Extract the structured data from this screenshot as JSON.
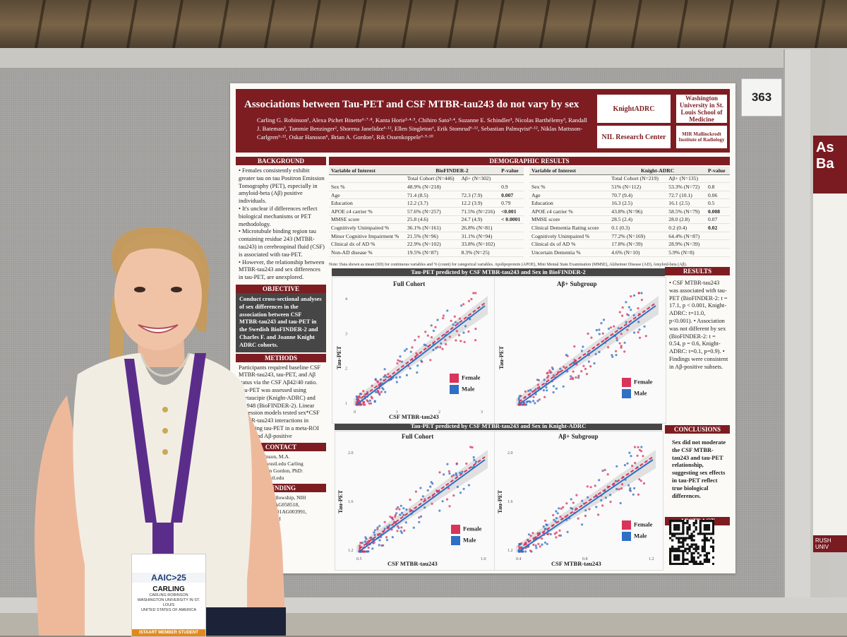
{
  "booth_number": "363",
  "poster": {
    "title": "Associations between Tau-PET and CSF MTBR-tau243 do not vary by sex",
    "authors": "Carling G. Robinson¹, Alexa Pichet Binette⁶·⁷·⁸, Kanta Horie³·⁴·⁵, Chihiro Sato³·⁴, Suzanne E. Schindler³, Nicolas Barthélemy³, Randall J. Bateman³, Tammie Benzinger², Shorena Janelidze⁶·¹², Ellen Singleton⁶, Erik Stomrud⁶·¹², Sebastian Palmqvist⁶·¹², Niklas Mattsson-Carlgren⁶·¹², Oskar Hansson⁶, Brian A. Gordon², Rik Ossenkoppele⁶·⁹·¹⁰",
    "logos": {
      "knight_adrc": "KnightADRC",
      "washington": "Washington University in St. Louis School of Medicine",
      "nil": "NIL Research Center",
      "mir": "MIR Mallinckrodt Institute of Radiology"
    },
    "background": {
      "heading": "BACKGROUND",
      "bullets": [
        "• Females consistently exhibit greater tau on tau Positron Emission Tomography (PET), especially in amyloid-beta (Aβ) positive individuals.",
        "• It's unclear if differences reflect biological mechanisms or PET methodology.",
        "• Microtubule binding region tau containing residue 243 (MTBR-tau243) in cerebrospinal fluid (CSF) is associated with tau-PET.",
        "• However, the relationship between MTBR-tau243 and sex differences in tau-PET, are unexplored."
      ]
    },
    "objective": {
      "heading": "OBJECTIVE",
      "text": "Conduct cross-sectional analyses of sex differences in the association between CSF MTBR-tau243 and tau-PET in the Swedish BioFINDER-2 and Charles F. and Joanne Knight ADRC cohorts."
    },
    "methods": {
      "heading": "METHODS",
      "text": "Participants required baseline CSF MTBR-tau243, tau-PET, and Aβ status via the CSF Aβ42/40 ratio. Tau-PET was assessed using flortaucipir (Knight-ADRC) and RO948 (BioFINDER-2). Linear regression models tested sex*CSF MTBR-tau243 interactions in predicting tau-PET in a meta-ROI in full and Aβ-positive"
    },
    "contact": {
      "heading": "CONTACT",
      "text": "Carling Robinson, M.A. c.robinson@wustl.edu Carling Robinson Brian Gordon, PhD: bagordon@wustl.edu"
    },
    "funding": {
      "heading": "FUNDING",
      "text": "Knight ADRC Fellowship, NIH R01AG068, R01AG058518, R01AG070941, P01AG003991, P30AG066444, and"
    },
    "demographics": {
      "heading": "DEMOGRAPHIC RESULTS",
      "note": "Note: Data shown as mean (SD) for continuous variables and % (count) for categorical variables. Apolipoprotein (APOE), Mini Mental State Examination (MMSE), Alzheimer Disease (AD), Amyloid-beta (Aβ).",
      "biofinder": {
        "col_variable": "Variable of Interest",
        "col_cohort": "BioFINDER-2",
        "col_p": "P-value",
        "sub_total": "Total Cohort (N=446)",
        "sub_pos": "Aβ+ (N=302)",
        "rows": [
          {
            "v": "Sex %",
            "t": "48.9% (N=218)",
            "a": "",
            "p": "0.9"
          },
          {
            "v": "Age",
            "t": "71.4 (8.5)",
            "a": "72.3 (7.9)",
            "p": "0.007"
          },
          {
            "v": "Education",
            "t": "12.2 (3.7)",
            "a": "12.2 (3.9)",
            "p": "0.79"
          },
          {
            "v": "APOE ε4 carrier %",
            "t": "57.6% (N=257)",
            "a": "71.5% (N=216)",
            "p": "<0.001"
          },
          {
            "v": "MMSE score",
            "t": "25.8 (4.6)",
            "a": "24.7 (4.9)",
            "p": "< 0.0001"
          },
          {
            "v": "Cognitively Unimpaired %",
            "t": "36.1% (N=161)",
            "a": "26.8% (N=81)",
            "p": ""
          },
          {
            "v": "Minor Cognitive Impairment %",
            "t": "21.5% (N=96)",
            "a": "31.1% (N=94)",
            "p": ""
          },
          {
            "v": "Clinical dx of AD %",
            "t": "22.9% (N=102)",
            "a": "33.8% (N=102)",
            "p": ""
          },
          {
            "v": "Non-AD disease %",
            "t": "19.5% (N=87)",
            "a": "8.3% (N=25)",
            "p": ""
          }
        ]
      },
      "knight": {
        "col_variable": "Variable of Interest",
        "col_cohort": "Knight-ADRC",
        "col_p": "P-value",
        "sub_total": "Total Cohort (N=219)",
        "sub_pos": "Aβ+ (N=135)",
        "rows": [
          {
            "v": "Sex %",
            "t": "51% (N=112)",
            "a": "53.3% (N=72)",
            "p": "0.8"
          },
          {
            "v": "Age",
            "t": "70.7 (9.4)",
            "a": "72.7 (10.1)",
            "p": "0.06"
          },
          {
            "v": "Education",
            "t": "16.3 (2.5)",
            "a": "16.1 (2.5)",
            "p": "0.5"
          },
          {
            "v": "APOE ε4 carrier %",
            "t": "43.8% (N=96)",
            "a": "58.5% (N=79)",
            "p": "0.008"
          },
          {
            "v": "MMSE score",
            "t": "28.5 (2.4)",
            "a": "28.0 (2.8)",
            "p": "0.07"
          },
          {
            "v": "Clinical Dementia Rating score",
            "t": "0.1 (0.3)",
            "a": "0.2 (0.4)",
            "p": "0.02"
          },
          {
            "v": "Cognitively Unimpaired %",
            "t": "77.2% (N=169)",
            "a": "64.4% (N=87)",
            "p": ""
          },
          {
            "v": "Clinical dx of AD %",
            "t": "17.8% (N=39)",
            "a": "28.9% (N=39)",
            "p": ""
          },
          {
            "v": "Uncertain Dementia %",
            "t": "4.6% (N=10)",
            "a": "5.9% (N=8)",
            "p": ""
          }
        ]
      }
    },
    "plots": {
      "bf2_title": "Tau-PET predicted by CSF MTBR-tau243 and Sex in BioFINDER-2",
      "knight_title": "Tau-PET predicted by CSF MTBR-tau243 and Sex in Knight-ADRC",
      "full_cohort": "Full Cohort",
      "abeta_subgroup": "Aβ+ Subgroup",
      "xlabel": "CSF MTBR-tau243",
      "ylabel": "Tau-PET",
      "legend_female": "Female",
      "legend_male": "Male",
      "female_color": "#d9345a",
      "male_color": "#2f6fc4",
      "bf2_xticks": [
        "0",
        "1",
        "2",
        "3"
      ],
      "bf2_yticks": [
        "1",
        "2",
        "3",
        "4"
      ],
      "knight_full_xticks": [
        "0.5",
        "1.0"
      ],
      "knight_full_yticks": [
        "1.2",
        "1.6",
        "2.0"
      ],
      "knight_pos_xticks": [
        "0.4",
        "0.8",
        "1.2"
      ],
      "knight_pos_yticks": [
        "1.2",
        "1.6",
        "2.0"
      ]
    },
    "results": {
      "heading": "RESULTS",
      "text": "• CSF MTBR-tau243 was associated with tau-PET (BioFINDER-2: t = 17.1, p < 0.001, Knight-ADRC: t=11.0, p<0.001). • Association was not different by sex (BioFINDER-2: t = 0.54, p = 0.6, Knight-ADRC: t=0.1, p=0.9). • Findings were consistent in Aβ-positive subsets."
    },
    "conclusions": {
      "heading": "CONCLUSIONS",
      "text": "Sex did not moderate the CSF MTBR-tau243 and tau-PET relationship, suggesting sex effects in tau-PET reflect true biological differences."
    },
    "abstract": {
      "heading": "ABSTRACT",
      "qr_icon": "qr-code-icon"
    }
  },
  "badge": {
    "event_logo": "AAIC>25",
    "first_name": "CARLING",
    "full_name": "CARLING ROBINSON",
    "institution": "WASHINGTON UNIVERSITY IN ST. LOUIS",
    "country": "UNITED STATES OF AMERICA",
    "member_type": "ISTAART MEMBER STUDENT"
  },
  "side_poster": {
    "header": "As Ba",
    "footer": "RUSH UNIV"
  }
}
